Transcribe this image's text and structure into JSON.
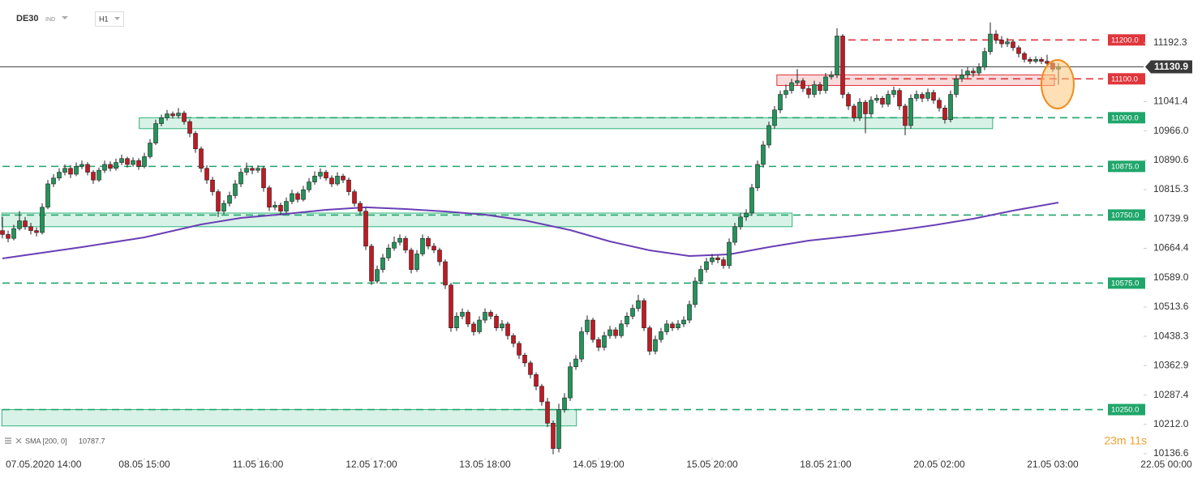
{
  "header": {
    "symbol": "DE30",
    "market": "IND",
    "timeframe": "H1"
  },
  "chart_data": {
    "type": "candlestick",
    "xlim": [
      -0.43,
      201
    ],
    "ylim": [
      10126.2,
      11302.6
    ],
    "up_color": "#23935a",
    "down_color": "#c01a24",
    "wick_color": "#222222",
    "xticks": [
      {
        "value": 5,
        "label": "07.05.2020 14:00"
      },
      {
        "value": 25,
        "label": "08.05 15:00"
      },
      {
        "value": 45,
        "label": "11.05 16:00"
      },
      {
        "value": 65,
        "label": "12.05 17:00"
      },
      {
        "value": 85,
        "label": "13.05 18:00"
      },
      {
        "value": 105,
        "label": "14.05 19:00"
      },
      {
        "value": 125,
        "label": "15.05 20:00"
      },
      {
        "value": 145,
        "label": "18.05 21:00"
      },
      {
        "value": 165,
        "label": "20.05 02:00"
      },
      {
        "value": 185,
        "label": "21.05 03:00"
      },
      {
        "value": 205,
        "label": "22.05 00:00"
      }
    ],
    "yticks": [
      11192.3,
      11041.4,
      {
        "value": 10966,
        "label": "10966.0"
      },
      10890.6,
      10815.3,
      10739.9,
      10664.4,
      {
        "value": 10589,
        "label": "10589.0"
      },
      10513.6,
      10438.3,
      10362.9,
      10287.4,
      {
        "value": 10212,
        "label": "10212.0"
      },
      10136.6
    ],
    "last_price": 11130.9,
    "candles": [
      [
        10710,
        10745,
        10690,
        10700
      ],
      [
        10700,
        10710,
        10680,
        10690
      ],
      [
        10690,
        10725,
        10685,
        10715
      ],
      [
        10715,
        10760,
        10710,
        10735
      ],
      [
        10735,
        10745,
        10712,
        10720
      ],
      [
        10720,
        10730,
        10700,
        10710
      ],
      [
        10710,
        10718,
        10695,
        10705
      ],
      [
        10705,
        10780,
        10700,
        10770
      ],
      [
        10770,
        10840,
        10765,
        10830
      ],
      [
        10830,
        10855,
        10822,
        10845
      ],
      [
        10845,
        10870,
        10838,
        10860
      ],
      [
        10860,
        10880,
        10852,
        10870
      ],
      [
        10870,
        10878,
        10845,
        10855
      ],
      [
        10855,
        10885,
        10850,
        10875
      ],
      [
        10875,
        10890,
        10868,
        10880
      ],
      [
        10880,
        10886,
        10852,
        10860
      ],
      [
        10860,
        10866,
        10830,
        10840
      ],
      [
        10840,
        10872,
        10835,
        10865
      ],
      [
        10865,
        10890,
        10858,
        10880
      ],
      [
        10880,
        10888,
        10862,
        10870
      ],
      [
        10870,
        10895,
        10864,
        10885
      ],
      [
        10885,
        10905,
        10878,
        10895
      ],
      [
        10895,
        10900,
        10872,
        10880
      ],
      [
        10880,
        10898,
        10874,
        10890
      ],
      [
        10890,
        10896,
        10866,
        10875
      ],
      [
        10875,
        10910,
        10870,
        10900
      ],
      [
        10900,
        10945,
        10895,
        10935
      ],
      [
        10935,
        10995,
        10930,
        10985
      ],
      [
        10985,
        11008,
        10978,
        11000
      ],
      [
        11000,
        11020,
        10993,
        11010
      ],
      [
        11010,
        11016,
        10998,
        11005
      ],
      [
        11005,
        11025,
        10998,
        11012
      ],
      [
        11012,
        11018,
        10982,
        10990
      ],
      [
        10990,
        10996,
        10950,
        10960
      ],
      [
        10960,
        10966,
        10910,
        10920
      ],
      [
        10920,
        10926,
        10860,
        10870
      ],
      [
        10870,
        10878,
        10830,
        10840
      ],
      [
        10840,
        10848,
        10800,
        10810
      ],
      [
        10810,
        10816,
        10745,
        10760
      ],
      [
        10760,
        10788,
        10752,
        10780
      ],
      [
        10780,
        10810,
        10772,
        10800
      ],
      [
        10800,
        10840,
        10792,
        10830
      ],
      [
        10830,
        10870,
        10822,
        10860
      ],
      [
        10860,
        10885,
        10852,
        10870
      ],
      [
        10870,
        10876,
        10855,
        10865
      ],
      [
        10865,
        10878,
        10858,
        10870
      ],
      [
        10870,
        10876,
        10810,
        10820
      ],
      [
        10820,
        10826,
        10760,
        10770
      ],
      [
        10770,
        10785,
        10762,
        10775
      ],
      [
        10775,
        10782,
        10750,
        10760
      ],
      [
        10760,
        10795,
        10755,
        10785
      ],
      [
        10785,
        10815,
        10778,
        10805
      ],
      [
        10805,
        10810,
        10782,
        10790
      ],
      [
        10790,
        10825,
        10785,
        10815
      ],
      [
        10815,
        10845,
        10808,
        10835
      ],
      [
        10835,
        10862,
        10828,
        10850
      ],
      [
        10850,
        10870,
        10842,
        10860
      ],
      [
        10860,
        10866,
        10838,
        10845
      ],
      [
        10845,
        10852,
        10822,
        10830
      ],
      [
        10830,
        10860,
        10825,
        10850
      ],
      [
        10850,
        10856,
        10832,
        10840
      ],
      [
        10840,
        10846,
        10800,
        10810
      ],
      [
        10810,
        10816,
        10772,
        10780
      ],
      [
        10780,
        10786,
        10750,
        10760
      ],
      [
        10760,
        10768,
        10660,
        10670
      ],
      [
        10670,
        10676,
        10570,
        10580
      ],
      [
        10580,
        10620,
        10574,
        10610
      ],
      [
        10610,
        10650,
        10602,
        10640
      ],
      [
        10640,
        10675,
        10632,
        10665
      ],
      [
        10665,
        10695,
        10658,
        10680
      ],
      [
        10680,
        10700,
        10672,
        10690
      ],
      [
        10690,
        10696,
        10652,
        10660
      ],
      [
        10660,
        10666,
        10600,
        10610
      ],
      [
        10610,
        10660,
        10604,
        10650
      ],
      [
        10650,
        10700,
        10644,
        10690
      ],
      [
        10690,
        10696,
        10662,
        10670
      ],
      [
        10670,
        10678,
        10652,
        10660
      ],
      [
        10660,
        10666,
        10620,
        10630
      ],
      [
        10630,
        10636,
        10560,
        10570
      ],
      [
        10570,
        10576,
        10450,
        10460
      ],
      [
        10460,
        10500,
        10452,
        10490
      ],
      [
        10490,
        10510,
        10482,
        10500
      ],
      [
        10500,
        10506,
        10462,
        10470
      ],
      [
        10470,
        10476,
        10440,
        10450
      ],
      [
        10450,
        10490,
        10444,
        10480
      ],
      [
        10480,
        10510,
        10472,
        10500
      ],
      [
        10500,
        10506,
        10482,
        10490
      ],
      [
        10490,
        10496,
        10452,
        10460
      ],
      [
        10460,
        10480,
        10452,
        10470
      ],
      [
        10470,
        10476,
        10430,
        10440
      ],
      [
        10440,
        10446,
        10410,
        10420
      ],
      [
        10420,
        10426,
        10380,
        10390
      ],
      [
        10390,
        10396,
        10360,
        10370
      ],
      [
        10370,
        10376,
        10330,
        10340
      ],
      [
        10340,
        10346,
        10300,
        10310
      ],
      [
        10310,
        10316,
        10260,
        10270
      ],
      [
        10270,
        10280,
        10205,
        10215
      ],
      [
        10215,
        10222,
        10135,
        10150
      ],
      [
        10150,
        10265,
        10140,
        10250
      ],
      [
        10250,
        10292,
        10242,
        10280
      ],
      [
        10280,
        10372,
        10272,
        10360
      ],
      [
        10360,
        10390,
        10352,
        10380
      ],
      [
        10380,
        10462,
        10372,
        10450
      ],
      [
        10450,
        10492,
        10442,
        10480
      ],
      [
        10480,
        10486,
        10422,
        10430
      ],
      [
        10430,
        10436,
        10400,
        10410
      ],
      [
        10410,
        10450,
        10402,
        10440
      ],
      [
        10440,
        10465,
        10432,
        10455
      ],
      [
        10455,
        10462,
        10432,
        10440
      ],
      [
        10440,
        10480,
        10434,
        10470
      ],
      [
        10470,
        10500,
        10462,
        10490
      ],
      [
        10490,
        10520,
        10482,
        10510
      ],
      [
        10510,
        10545,
        10502,
        10530
      ],
      [
        10530,
        10536,
        10452,
        10460
      ],
      [
        10460,
        10466,
        10390,
        10400
      ],
      [
        10400,
        10440,
        10392,
        10430
      ],
      [
        10430,
        10460,
        10422,
        10450
      ],
      [
        10450,
        10480,
        10442,
        10470
      ],
      [
        10470,
        10476,
        10452,
        10460
      ],
      [
        10460,
        10480,
        10454,
        10470
      ],
      [
        10470,
        10490,
        10462,
        10480
      ],
      [
        10480,
        10530,
        10472,
        10520
      ],
      [
        10520,
        10590,
        10512,
        10580
      ],
      [
        10580,
        10620,
        10572,
        10610
      ],
      [
        10610,
        10640,
        10602,
        10630
      ],
      [
        10630,
        10650,
        10622,
        10640
      ],
      [
        10640,
        10646,
        10626,
        10635
      ],
      [
        10635,
        10642,
        10612,
        10620
      ],
      [
        10620,
        10690,
        10612,
        10680
      ],
      [
        10680,
        10730,
        10672,
        10720
      ],
      [
        10720,
        10755,
        10712,
        10745
      ],
      [
        10745,
        10765,
        10735,
        10755
      ],
      [
        10755,
        10830,
        10748,
        10820
      ],
      [
        10820,
        10890,
        10812,
        10880
      ],
      [
        10880,
        10940,
        10872,
        10930
      ],
      [
        10930,
        10990,
        10922,
        10980
      ],
      [
        10980,
        11030,
        10972,
        11020
      ],
      [
        11020,
        11070,
        11012,
        11060
      ],
      [
        11060,
        11085,
        11050,
        11070
      ],
      [
        11070,
        11100,
        11062,
        11090
      ],
      [
        11090,
        11125,
        11082,
        11095
      ],
      [
        11095,
        11102,
        11066,
        11075
      ],
      [
        11075,
        11082,
        11050,
        11060
      ],
      [
        11060,
        11095,
        11052,
        11085
      ],
      [
        11085,
        11092,
        11060,
        11070
      ],
      [
        11070,
        11115,
        11062,
        11105
      ],
      [
        11105,
        11120,
        11098,
        11110
      ],
      [
        11110,
        11230,
        11102,
        11210
      ],
      [
        11210,
        11215,
        11050,
        11060
      ],
      [
        11060,
        11066,
        11020,
        11030
      ],
      [
        11030,
        11036,
        10990,
        11000
      ],
      [
        11000,
        11050,
        10992,
        11040
      ],
      [
        11040,
        11046,
        10960,
        11010
      ],
      [
        11010,
        11055,
        11002,
        11045
      ],
      [
        11045,
        11060,
        11038,
        11050
      ],
      [
        11050,
        11056,
        11026,
        11035
      ],
      [
        11035,
        11070,
        11028,
        11060
      ],
      [
        11060,
        11080,
        11052,
        11070
      ],
      [
        11070,
        11076,
        11020,
        11030
      ],
      [
        11030,
        11036,
        10955,
        10980
      ],
      [
        10980,
        11060,
        10972,
        11050
      ],
      [
        11050,
        11070,
        11042,
        11060
      ],
      [
        11060,
        11066,
        11040,
        11050
      ],
      [
        11050,
        11075,
        11042,
        11065
      ],
      [
        11065,
        11072,
        11036,
        11045
      ],
      [
        11045,
        11052,
        11016,
        11025
      ],
      [
        11025,
        11032,
        10985,
        10995
      ],
      [
        10995,
        11070,
        10988,
        11060
      ],
      [
        11060,
        11110,
        11052,
        11100
      ],
      [
        11100,
        11125,
        11092,
        11110
      ],
      [
        11110,
        11130,
        11102,
        11120
      ],
      [
        11120,
        11128,
        11105,
        11115
      ],
      [
        11115,
        11140,
        11108,
        11130
      ],
      [
        11130,
        11180,
        11122,
        11170
      ],
      [
        11170,
        11245,
        11162,
        11215
      ],
      [
        11215,
        11225,
        11190,
        11200
      ],
      [
        11200,
        11210,
        11180,
        11190
      ],
      [
        11190,
        11205,
        11182,
        11195
      ],
      [
        11195,
        11200,
        11172,
        11180
      ],
      [
        11180,
        11186,
        11155,
        11165
      ],
      [
        11165,
        11170,
        11142,
        11150
      ],
      [
        11150,
        11156,
        11138,
        11145
      ],
      [
        11145,
        11158,
        11140,
        11150
      ],
      [
        11150,
        11156,
        11138,
        11145
      ],
      [
        11145,
        11162,
        11132,
        11140
      ],
      [
        11140,
        11146,
        11118,
        11125
      ],
      [
        11125,
        11140,
        11085,
        11130.9
      ]
    ],
    "sma": {
      "label": "SMA [200, 0]",
      "value": 10787.7,
      "color": "#6a3fb5",
      "x": [
        0,
        14,
        25,
        35,
        42,
        50,
        57,
        64,
        71,
        78,
        85,
        92,
        100,
        107,
        114,
        121,
        128,
        135,
        142,
        150,
        157,
        164,
        171,
        178,
        186
      ],
      "values": [
        10638.5,
        10667.6,
        10692.6,
        10725.9,
        10742.6,
        10753,
        10763.4,
        10769.7,
        10765.5,
        10759.2,
        10750.9,
        10736.3,
        10711.3,
        10682.2,
        10659.3,
        10644.7,
        10648.9,
        10667.6,
        10684.3,
        10696.8,
        10709.3,
        10723.8,
        10740.5,
        10761.3,
        10782.1
      ]
    },
    "zones": [
      {
        "from": 24.1,
        "to": 174.4,
        "low": 10972,
        "high": 11000,
        "color": "#2eb57a"
      },
      {
        "from": -0.1,
        "to": 139.1,
        "low": 10720,
        "high": 10755,
        "color": "#2eb57a"
      },
      {
        "from": -0.1,
        "to": 101.1,
        "low": 10208,
        "high": 10250,
        "color": "#2eb57a"
      },
      {
        "from": 136.4,
        "to": 185.3,
        "low": 11083,
        "high": 11110,
        "color": "#e0353b"
      }
    ],
    "levels": [
      {
        "value": 11200,
        "label": "11200.0",
        "from": 149,
        "color": "#e0353b"
      },
      {
        "value": 11100,
        "label": "11100.0",
        "from": 148,
        "color": "#e0353b"
      },
      {
        "value": 11000,
        "label": "11000.0",
        "from": 32,
        "color": "#1fa66a"
      },
      {
        "value": 10875,
        "label": "10875.0",
        "from": 0,
        "color": "#1fa66a"
      },
      {
        "value": 10750,
        "label": "10750.0",
        "from": 0,
        "color": "#1fa66a"
      },
      {
        "value": 10575,
        "label": "10575.0",
        "from": 0,
        "color": "#1fa66a"
      },
      {
        "value": 10250,
        "label": "10250.0",
        "from": 0,
        "color": "#1fa66a"
      }
    ],
    "countdown": "23m 11s"
  }
}
